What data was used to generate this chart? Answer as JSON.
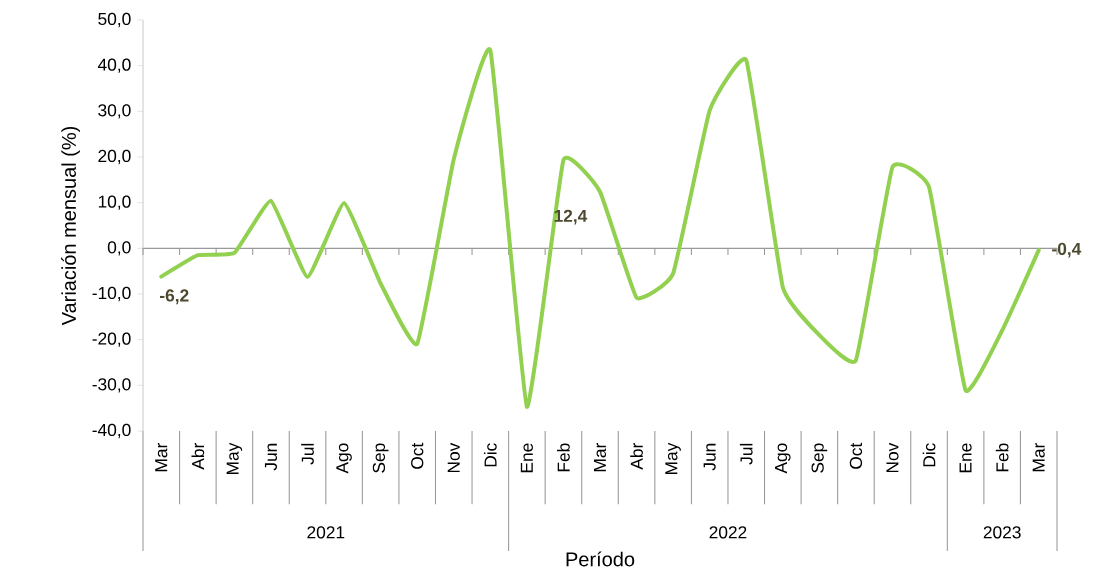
{
  "chart_data": {
    "type": "line",
    "xlabel": "Período",
    "ylabel": "Variación mensual (%)",
    "categories": [
      "Mar",
      "Abr",
      "May",
      "Jun",
      "Jul",
      "Ago",
      "Sep",
      "Oct",
      "Nov",
      "Dic",
      "Ene",
      "Feb",
      "Mar",
      "Abr",
      "May",
      "Jun",
      "Jul",
      "Ago",
      "Sep",
      "Oct",
      "Nov",
      "Dic",
      "Ene",
      "Feb",
      "Mar"
    ],
    "series": [
      {
        "color": "#92d050",
        "values": [
          -6.2,
          -1.5,
          -1.0,
          10.4,
          -6.3,
          9.9,
          -7.7,
          -20.9,
          19.5,
          43.4,
          -34.7,
          19.3,
          12.4,
          -10.8,
          -5.5,
          30.2,
          41.2,
          -8.5,
          -19.0,
          -24.5,
          17.8,
          13.4,
          -31.1,
          -18.0,
          -0.4
        ],
        "value_labels": [
          "-6,2",
          null,
          null,
          null,
          null,
          null,
          null,
          null,
          null,
          null,
          null,
          null,
          "12,4",
          null,
          null,
          null,
          null,
          null,
          null,
          null,
          null,
          null,
          null,
          null,
          "-0,4"
        ]
      }
    ],
    "ylim": [
      -40,
      50
    ],
    "yticks": [
      {
        "value": -40,
        "label": "-40,0"
      },
      {
        "value": -30,
        "label": "-30,0"
      },
      {
        "value": -20,
        "label": "-20,0"
      },
      {
        "value": -10,
        "label": "-10,0"
      },
      {
        "value": 0,
        "label": "0,0"
      },
      {
        "value": 10,
        "label": "10,0"
      },
      {
        "value": 20,
        "label": "20,0"
      },
      {
        "value": 30,
        "label": "30,0"
      },
      {
        "value": 40,
        "label": "40,0"
      },
      {
        "value": 50,
        "label": "50,0"
      }
    ],
    "annotations": [
      "2021",
      "2022",
      "2023"
    ]
  }
}
